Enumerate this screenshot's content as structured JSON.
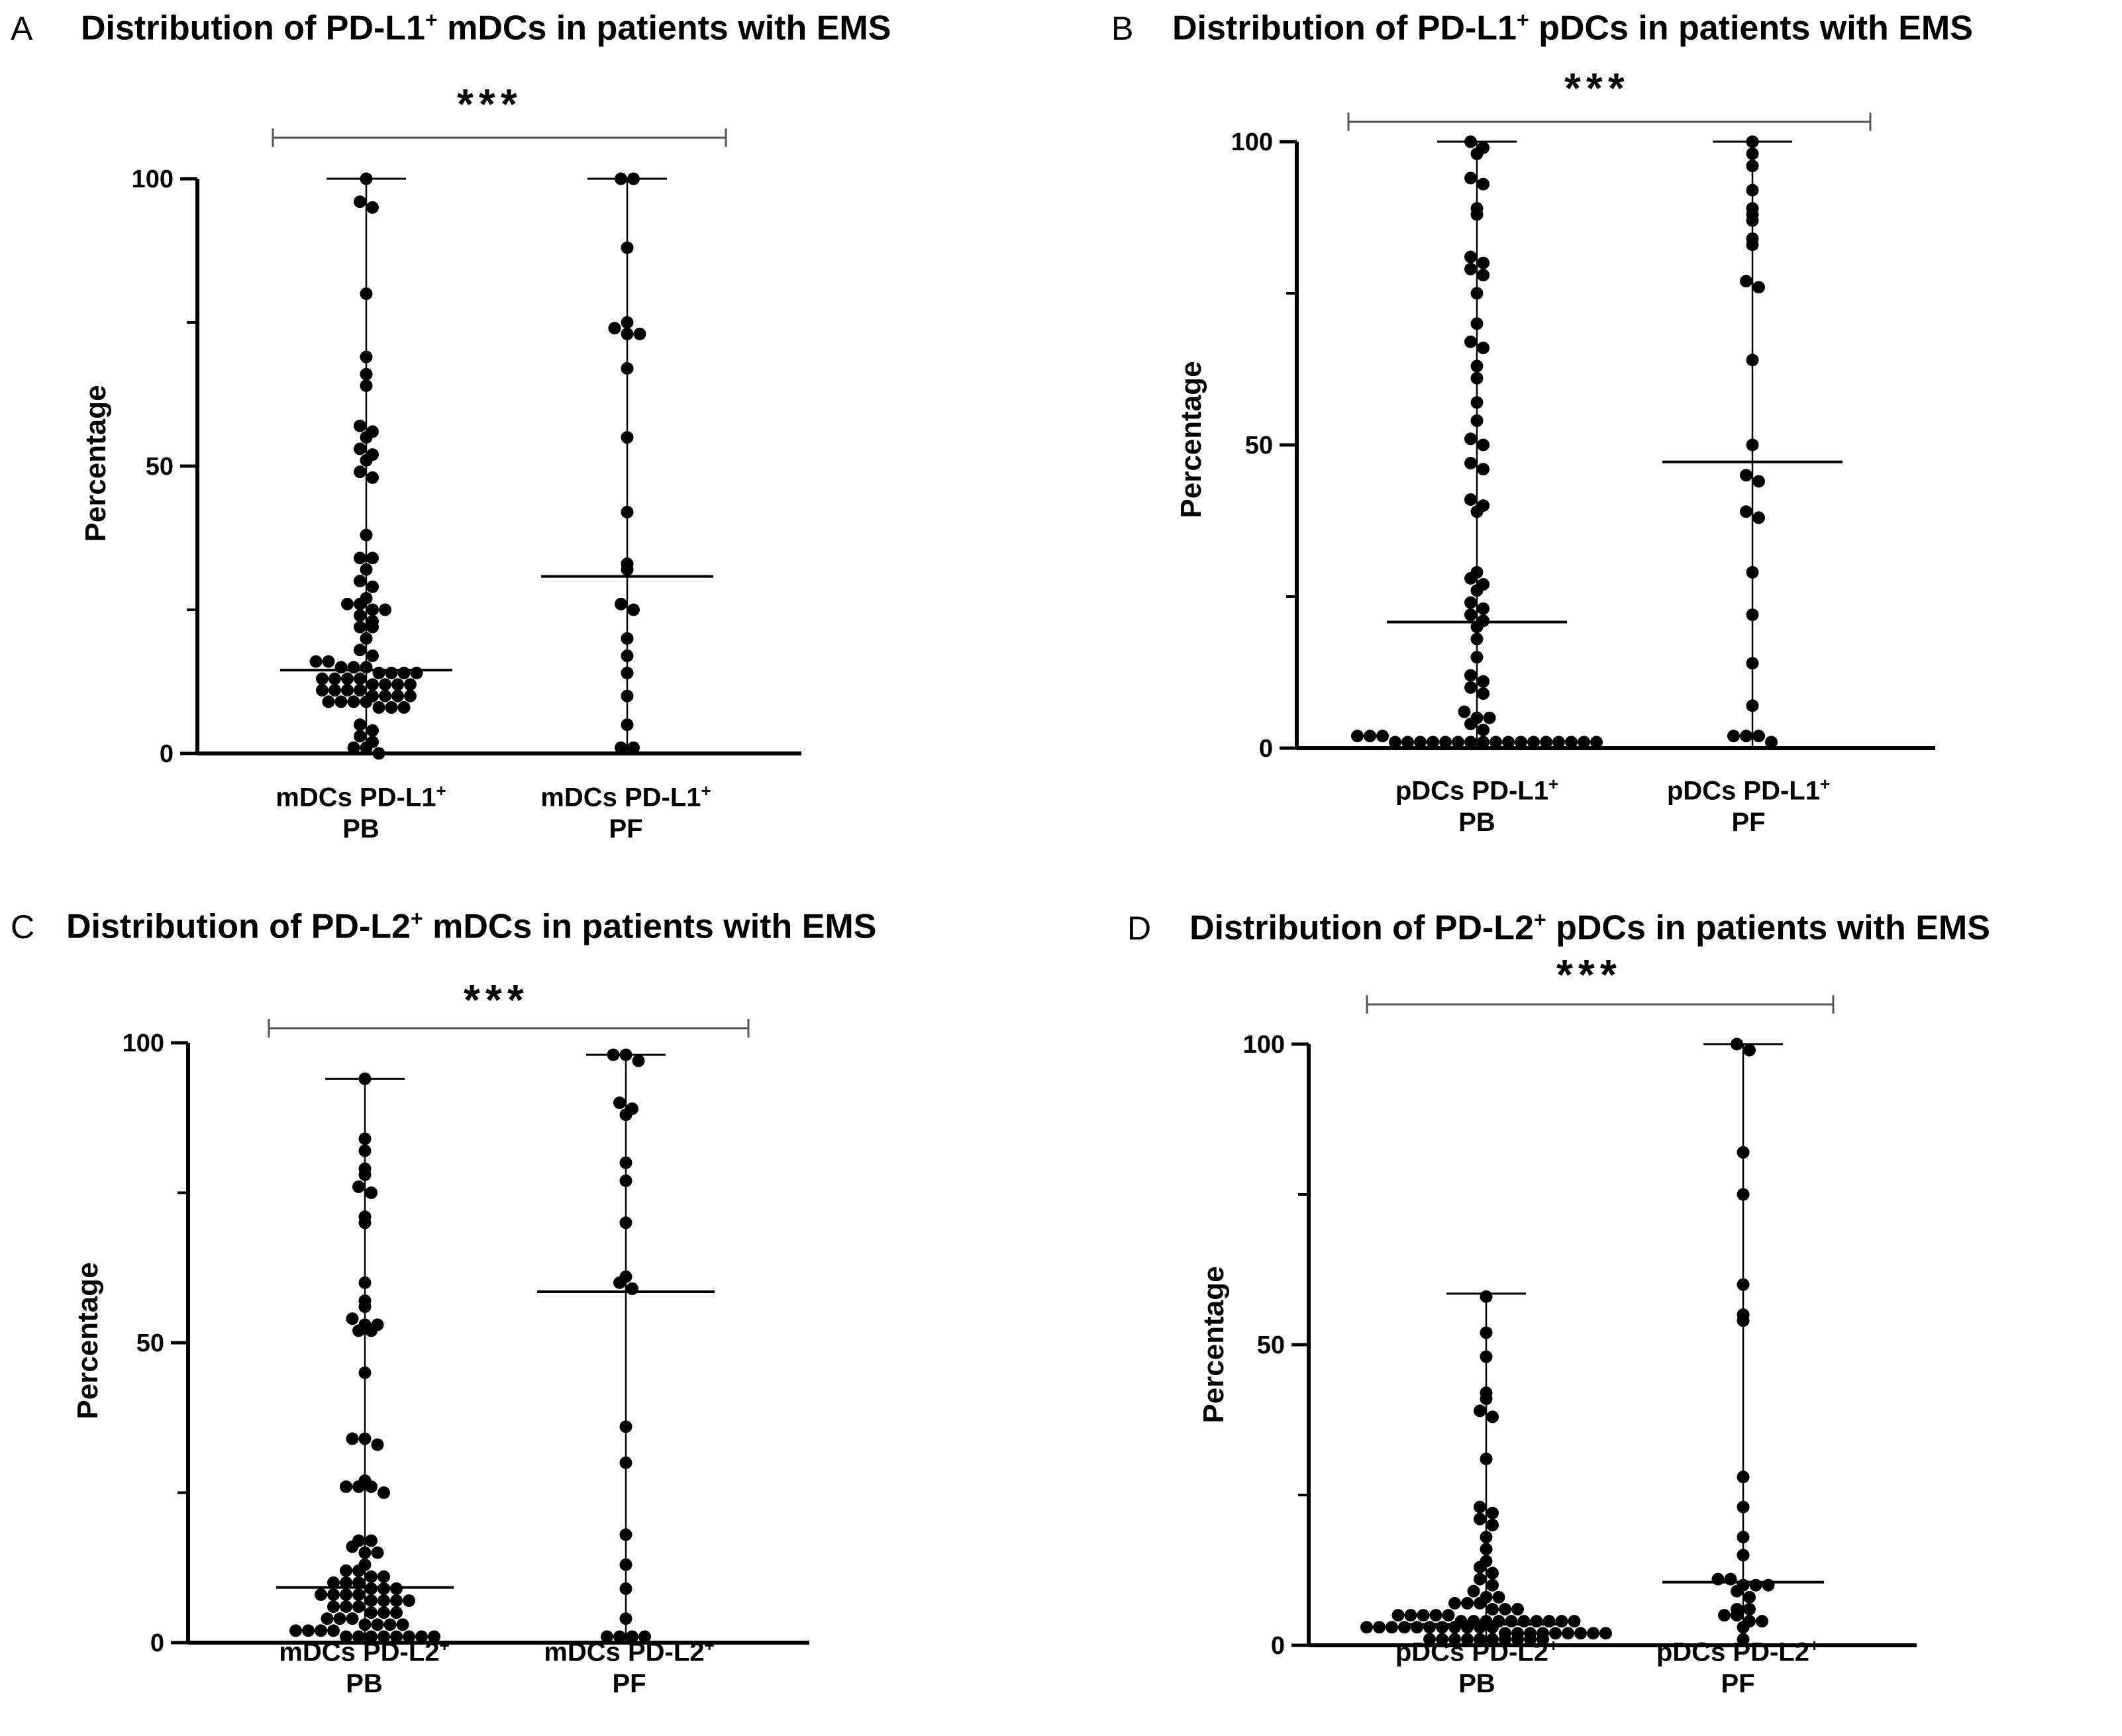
{
  "chart_data": [
    {
      "type": "scatter",
      "letter": "A",
      "title_main": "Distribution of PD-L1",
      "title_sup": "+",
      "title_rest": " mDCs in patients with EMS",
      "ylabel": "Percentage",
      "ylim": [
        0,
        100
      ],
      "yticks": [
        "0",
        "50",
        "100"
      ],
      "significance": "***",
      "categories": [
        {
          "name": "mDCs PD-L1",
          "sup": "+",
          "line2": "PB",
          "median": 14.5,
          "min": 0,
          "max": 100,
          "values": [
            100,
            96,
            95,
            80,
            69,
            66,
            64,
            57,
            56,
            55,
            53,
            52,
            51,
            49,
            48,
            38,
            34,
            34,
            32,
            30,
            29,
            27,
            26,
            26,
            25,
            25,
            24,
            23,
            22,
            22,
            20,
            18,
            17,
            16,
            16,
            15,
            15,
            15,
            14,
            14,
            14,
            14,
            13,
            13,
            13,
            13,
            12,
            12,
            12,
            12,
            11,
            11,
            11,
            11,
            10,
            10,
            10,
            10,
            9,
            9,
            9,
            9,
            8,
            8,
            8,
            5,
            4,
            3,
            2,
            1,
            1,
            0
          ]
        },
        {
          "name": "mDCs PD-L1",
          "sup": "+",
          "line2": "PF",
          "median": 30.8,
          "min": 0,
          "max": 100,
          "values": [
            100,
            100,
            88,
            75,
            74,
            73,
            73,
            67,
            55,
            42,
            33,
            32,
            26,
            25,
            20,
            17,
            14,
            10,
            5,
            1,
            1
          ]
        }
      ]
    },
    {
      "type": "scatter",
      "letter": "B",
      "title_main": "Distribution of PD-L1",
      "title_sup": "+",
      "title_rest": " pDCs in patients with EMS",
      "ylabel": "Percentage",
      "ylim": [
        0,
        100
      ],
      "yticks": [
        "0",
        "50",
        "100"
      ],
      "significance": "***",
      "categories": [
        {
          "name": "pDCs PD-L1",
          "sup": "+",
          "line2": "PB",
          "median": 20.8,
          "min": 0,
          "max": 100,
          "values": [
            100,
            99,
            98,
            94,
            93,
            89,
            88,
            81,
            80,
            79,
            78,
            75,
            70,
            67,
            66,
            63,
            61,
            57,
            54,
            51,
            50,
            47,
            46,
            41,
            40,
            39,
            29,
            28,
            27,
            26,
            24,
            23,
            22,
            21,
            20,
            18,
            15,
            12,
            11,
            10,
            9,
            6,
            5,
            5,
            4,
            3,
            2,
            2,
            2,
            1,
            1,
            1,
            1,
            1,
            1,
            1,
            1,
            1,
            1,
            1,
            1,
            1,
            1,
            1,
            1,
            1
          ]
        },
        {
          "name": "pDCs PD-L1",
          "sup": "+",
          "line2": "PF",
          "median": 47.2,
          "min": 0,
          "max": 100,
          "values": [
            100,
            98,
            96,
            92,
            89,
            88,
            87,
            84,
            83,
            77,
            76,
            64,
            50,
            45,
            44,
            39,
            38,
            29,
            22,
            14,
            7,
            2,
            2,
            2,
            1
          ]
        }
      ]
    },
    {
      "type": "scatter",
      "letter": "C",
      "title_main": "Distribution of PD-L2",
      "title_sup": "+",
      "title_rest": " mDCs in patients with EMS",
      "ylabel": "Percentage",
      "ylim": [
        0,
        100
      ],
      "yticks": [
        "0",
        "50",
        "100"
      ],
      "significance": "***",
      "categories": [
        {
          "name": "mDCs PD-L2",
          "sup": "+",
          "line2": "PB",
          "median": 9.2,
          "min": 0,
          "max": 94,
          "values": [
            94,
            84,
            82,
            79,
            78,
            76,
            75,
            71,
            70,
            60,
            57,
            56,
            54,
            53,
            53,
            52,
            52,
            45,
            34,
            34,
            33,
            27,
            26,
            26,
            26,
            25,
            17,
            17,
            16,
            15,
            15,
            13,
            12,
            12,
            11,
            11,
            10,
            10,
            10,
            9,
            9,
            9,
            8,
            8,
            8,
            8,
            7,
            7,
            7,
            7,
            6,
            6,
            6,
            5,
            5,
            5,
            4,
            4,
            4,
            3,
            3,
            3,
            3,
            2,
            2,
            2,
            2,
            1,
            1,
            1,
            1,
            1,
            1,
            1,
            1
          ]
        },
        {
          "name": "mDCs PD-L2",
          "sup": "+",
          "line2": "PF",
          "median": 58.5,
          "min": 0,
          "max": 98,
          "values": [
            98,
            98,
            97,
            90,
            89,
            88,
            80,
            77,
            70,
            61,
            60,
            59,
            36,
            30,
            18,
            13,
            9,
            4,
            1,
            1,
            1,
            1
          ]
        }
      ]
    },
    {
      "type": "scatter",
      "letter": "D",
      "title_main": "Distribution of PD-L2",
      "title_sup": "+",
      "title_rest": " pDCs in patients with EMS",
      "ylabel": "Percentage",
      "ylim": [
        0,
        100
      ],
      "yticks": [
        "0",
        "50",
        "100"
      ],
      "significance": "***",
      "categories": [
        {
          "name": "pDCs PD-L2",
          "sup": "+",
          "line2": "PB",
          "median": 3.5,
          "min": 0,
          "max": 58.5,
          "values": [
            58,
            52,
            48,
            42,
            41,
            39,
            38,
            31,
            23,
            22,
            21,
            20,
            18,
            16,
            14,
            13,
            12,
            11,
            10,
            9,
            8,
            8,
            7,
            7,
            7,
            6,
            6,
            6,
            5,
            5,
            5,
            5,
            5,
            4,
            4,
            4,
            4,
            4,
            4,
            4,
            4,
            4,
            4,
            3,
            3,
            3,
            3,
            3,
            3,
            3,
            3,
            3,
            3,
            3,
            2,
            2,
            2,
            2,
            2,
            2,
            2,
            2,
            2,
            1,
            1,
            1,
            1,
            1,
            1,
            1,
            1,
            1,
            1
          ]
        },
        {
          "name": "pDCs PD-L2",
          "sup": "+",
          "line2": "PF",
          "median": 10.5,
          "min": 0,
          "max": 100,
          "values": [
            100,
            99,
            82,
            75,
            60,
            55,
            54,
            28,
            23,
            18,
            15,
            11,
            11,
            10,
            10,
            10,
            9,
            8,
            6,
            6,
            5,
            5,
            4,
            4,
            3,
            1
          ]
        }
      ]
    }
  ]
}
